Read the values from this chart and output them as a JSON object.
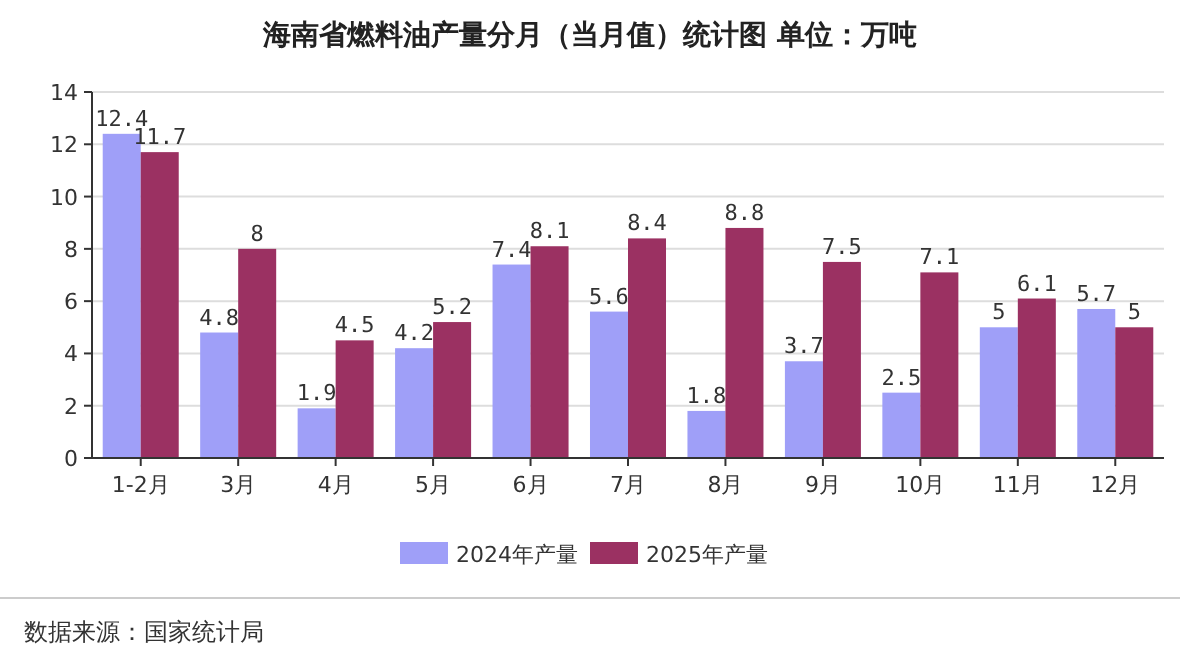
{
  "chart_data": {
    "type": "bar",
    "title": "海南省燃料油产量分月（当月值）统计图 单位：万吨",
    "categories": [
      "1-2月",
      "3月",
      "4月",
      "5月",
      "6月",
      "7月",
      "8月",
      "9月",
      "10月",
      "11月",
      "12月"
    ],
    "series": [
      {
        "name": "2024年产量",
        "color": "#9f9ff8",
        "values": [
          12.4,
          4.8,
          1.9,
          4.2,
          7.4,
          5.6,
          1.8,
          3.7,
          2.5,
          5,
          5.7
        ]
      },
      {
        "name": "2025年产量",
        "color": "#9b3162",
        "values": [
          11.7,
          8,
          4.5,
          5.2,
          8.1,
          8.4,
          8.8,
          7.5,
          7.1,
          6.1,
          5
        ]
      }
    ],
    "ylim": [
      0,
      14
    ],
    "yticks": [
      0,
      2,
      4,
      6,
      8,
      10,
      12,
      14
    ],
    "grid": "y",
    "legend": "bottom",
    "data_labels": true,
    "annotations": [
      "数据来源：国家统计局"
    ]
  }
}
